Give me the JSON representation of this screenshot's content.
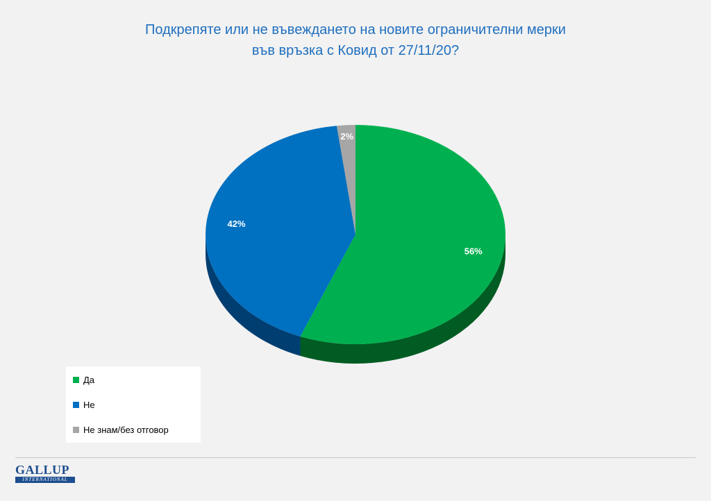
{
  "title": {
    "line1": "Подкрепяте или не въвеждането на новите ограничителни мерки",
    "line2": "във връзка с Ковид от 27/11/20?"
  },
  "chart_data": {
    "type": "pie",
    "title": "Подкрепяте или не въвеждането на новите ограничителни мерки във връзка с Ковид от 27/11/20?",
    "categories": [
      "Да",
      "Не",
      "Не знам/без отговор"
    ],
    "values": [
      56,
      42,
      2
    ],
    "data_labels": [
      "56%",
      "42%",
      "2%"
    ],
    "colors": [
      "#00b050",
      "#0070c0",
      "#a6a6a6"
    ],
    "side_colors": [
      "#005c22",
      "#003e72",
      "#5e5e5e"
    ],
    "legend_placement": "bottom-left",
    "style": "3d"
  },
  "legend": {
    "items": [
      {
        "label": "Да",
        "color": "#00b050"
      },
      {
        "label": "Не",
        "color": "#0070c0"
      },
      {
        "label": "Не знам/без отговор",
        "color": "#a6a6a6"
      }
    ]
  },
  "logo": {
    "main": "GALLUP",
    "sub": "INTERNATIONAL"
  }
}
